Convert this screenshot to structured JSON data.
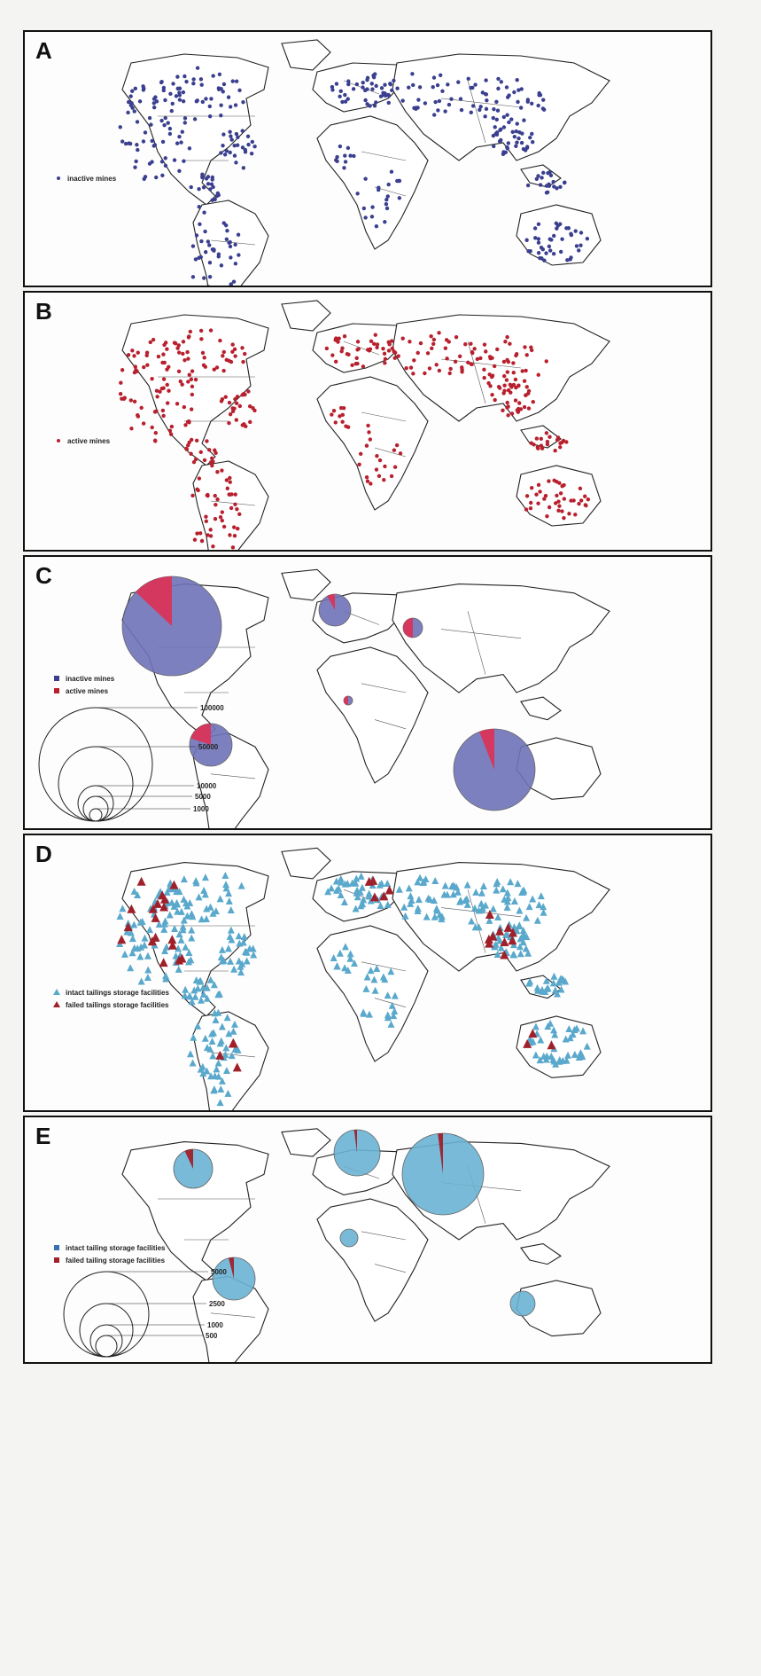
{
  "colors": {
    "inactive": "#3a3f8f",
    "active": "#b8202e",
    "pie_inactive": "#7073b8",
    "pie_active": "#d9345a",
    "intact": "#5aa9cc",
    "failed": "#a0202a",
    "pie_intact": "#6ab3d3",
    "pie_failed": "#a0202a"
  },
  "panels": {
    "a": {
      "letter": "A",
      "legend": [
        {
          "label": "inactive mines",
          "color": "#3a3f8f",
          "shape": "dot"
        }
      ]
    },
    "b": {
      "letter": "B",
      "legend": [
        {
          "label": "active mines",
          "color": "#b8202e",
          "shape": "dot"
        }
      ]
    },
    "c": {
      "letter": "C",
      "legend": [
        {
          "label": "inactive mines",
          "color": "#3a3f8f",
          "shape": "square"
        },
        {
          "label": "active mines",
          "color": "#b8202e",
          "shape": "square"
        }
      ],
      "scale_labels": [
        "100000",
        "50000",
        "10000",
        "5000",
        "1000"
      ]
    },
    "d": {
      "letter": "D",
      "legend": [
        {
          "label": "intact tailings storage facilities",
          "color": "#5aa9cc",
          "shape": "triangle"
        },
        {
          "label": "failed tailings storage facilities",
          "color": "#a0202a",
          "shape": "triangle"
        }
      ]
    },
    "e": {
      "letter": "E",
      "legend": [
        {
          "label": "intact tailing storage facilities",
          "color": "#3a6fb0",
          "shape": "square"
        },
        {
          "label": "failed tailing storage facilities",
          "color": "#a0202a",
          "shape": "square"
        }
      ],
      "scale_labels": [
        "5000",
        "2500",
        "1000",
        "500"
      ]
    }
  }
}
